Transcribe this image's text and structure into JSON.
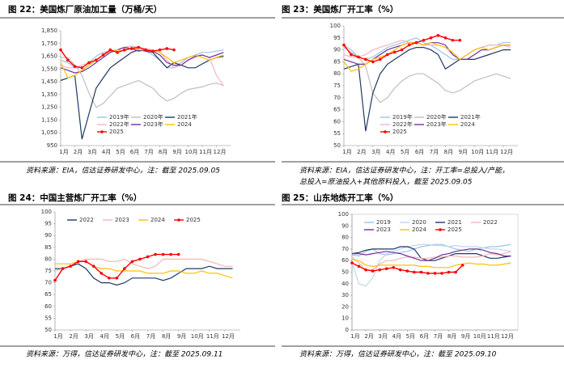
{
  "chart_data": [
    {
      "type": "line",
      "title": "图 22：美国炼厂原油加工量（万桶/天）",
      "note": [
        "资料来源：EIA，信达证券研发中心，注：截至 2025.09.05"
      ],
      "x": [
        1,
        2,
        3,
        4,
        5,
        6,
        7,
        8,
        9,
        10,
        11,
        12,
        13,
        14,
        15,
        16,
        17,
        18,
        19,
        20,
        21,
        22,
        23,
        24
      ],
      "xlim": [
        1,
        25
      ],
      "xticks": [
        {
          "value": 1,
          "label": "1月"
        },
        {
          "value": 3,
          "label": "2月"
        },
        {
          "value": 5,
          "label": "3月"
        },
        {
          "value": 7,
          "label": "4月"
        },
        {
          "value": 9,
          "label": "5月"
        },
        {
          "value": 11,
          "label": "6月"
        },
        {
          "value": 13,
          "label": "7月"
        },
        {
          "value": 15,
          "label": "8月"
        },
        {
          "value": 17,
          "label": "9月"
        },
        {
          "value": 19,
          "label": "10月"
        },
        {
          "value": 21,
          "label": "11月"
        },
        {
          "value": 23,
          "label": "12月"
        }
      ],
      "ylim": [
        950,
        1850
      ],
      "yticks": [
        {
          "value": 950,
          "label": "950"
        },
        {
          "value": 1050,
          "label": "1,050"
        },
        {
          "value": 1150,
          "label": "1,150"
        },
        {
          "value": 1250,
          "label": "1,250"
        },
        {
          "value": 1350,
          "label": "1,350"
        },
        {
          "value": 1450,
          "label": "1,450"
        },
        {
          "value": 1550,
          "label": "1,550"
        },
        {
          "value": 1650,
          "label": "1,650"
        },
        {
          "value": 1750,
          "label": "1,750"
        },
        {
          "value": 1850,
          "label": "1,850"
        }
      ],
      "legend": "bottom",
      "series": [
        {
          "name": "2019年",
          "color": "#9dc3e6",
          "values": [
            1620,
            1600,
            1560,
            1560,
            1600,
            1650,
            1680,
            1690,
            1700,
            1720,
            1730,
            1700,
            1690,
            1660,
            1620,
            1560,
            1560,
            1600,
            1640,
            1660,
            1680,
            1680,
            1690,
            1700
          ]
        },
        {
          "name": "2020年",
          "color": "#bfbfbf",
          "values": [
            1640,
            1640,
            1580,
            1500,
            1360,
            1250,
            1280,
            1340,
            1400,
            1420,
            1440,
            1460,
            1430,
            1400,
            1340,
            1300,
            1320,
            1360,
            1390,
            1400,
            1410,
            1430,
            1440,
            1420
          ]
        },
        {
          "name": "2021年",
          "color": "#1f3864",
          "values": [
            1460,
            1480,
            1500,
            1000,
            1200,
            1400,
            1480,
            1560,
            1600,
            1640,
            1680,
            1700,
            1690,
            1680,
            1620,
            1560,
            1600,
            1580,
            1560,
            1560,
            1590,
            1620,
            1640,
            1650
          ]
        },
        {
          "name": "2022年",
          "color": "#f4b6c2",
          "values": [
            1580,
            1560,
            1560,
            1580,
            1600,
            1620,
            1660,
            1680,
            1700,
            1720,
            1730,
            1720,
            1710,
            1700,
            1680,
            1620,
            1560,
            1580,
            1620,
            1640,
            1660,
            1640,
            1500,
            1420
          ]
        },
        {
          "name": "2023年",
          "color": "#7030a0",
          "values": [
            1560,
            1540,
            1520,
            1530,
            1560,
            1600,
            1640,
            1680,
            1700,
            1720,
            1710,
            1690,
            1700,
            1690,
            1660,
            1600,
            1580,
            1580,
            1620,
            1650,
            1660,
            1640,
            1660,
            1680
          ]
        },
        {
          "name": "2024",
          "color": "#ffc000",
          "values": [
            1600,
            1480,
            1500,
            1540,
            1580,
            1620,
            1660,
            1690,
            1700,
            1690,
            1720,
            1700,
            1700,
            1700,
            1680,
            1640,
            1600,
            1620,
            1640,
            1660,
            1640,
            1620,
            1640,
            1660
          ]
        },
        {
          "name": "2025",
          "color": "#ff0000",
          "marker": true,
          "values": [
            1700,
            1620,
            1570,
            1560,
            1600,
            1620,
            1660,
            1700,
            1680,
            1700,
            1710,
            1720,
            1700,
            1690,
            1700,
            1710,
            1700,
            null,
            null,
            null,
            null,
            null,
            null,
            null
          ]
        }
      ]
    },
    {
      "type": "line",
      "title": "图 23：美国炼厂开工率（%）",
      "note": [
        "资料来源：EIA，信达证券研发中心，注：开工率=总投入/产能，",
        "总投入=原油投入+其他原料投入，截至 2025.09.05"
      ],
      "x": [
        1,
        2,
        3,
        4,
        5,
        6,
        7,
        8,
        9,
        10,
        11,
        12,
        13,
        14,
        15,
        16,
        17,
        18,
        19,
        20,
        21,
        22,
        23,
        24
      ],
      "xlim": [
        1,
        25
      ],
      "xticks": [
        {
          "value": 1,
          "label": "1月"
        },
        {
          "value": 3,
          "label": "2月"
        },
        {
          "value": 5,
          "label": "3月"
        },
        {
          "value": 7,
          "label": "4月"
        },
        {
          "value": 9,
          "label": "5月"
        },
        {
          "value": 11,
          "label": "6月"
        },
        {
          "value": 13,
          "label": "7月"
        },
        {
          "value": 15,
          "label": "8月"
        },
        {
          "value": 17,
          "label": "9月"
        },
        {
          "value": 19,
          "label": "10月"
        },
        {
          "value": 21,
          "label": "11月"
        },
        {
          "value": 23,
          "label": "12月"
        }
      ],
      "ylim": [
        50,
        100
      ],
      "yticks": [
        50,
        55,
        60,
        65,
        70,
        75,
        80,
        85,
        90,
        95,
        100
      ],
      "legend": "bottom",
      "series": [
        {
          "name": "2019年",
          "color": "#9dc3e6",
          "values": [
            91,
            89,
            87,
            86,
            87,
            89,
            91,
            92,
            93,
            94,
            95,
            93,
            92,
            90,
            88,
            86,
            86,
            88,
            90,
            91,
            92,
            92,
            93,
            93
          ]
        },
        {
          "name": "2020年",
          "color": "#bfbfbf",
          "values": [
            92,
            90,
            87,
            83,
            72,
            68,
            70,
            74,
            77,
            79,
            80,
            80,
            78,
            76,
            73,
            72,
            73,
            75,
            77,
            78,
            79,
            80,
            79,
            78
          ]
        },
        {
          "name": "2021年",
          "color": "#1f3864",
          "values": [
            82,
            83,
            84,
            56,
            72,
            80,
            84,
            86,
            88,
            90,
            91,
            91,
            90,
            88,
            82,
            84,
            86,
            86,
            86,
            87,
            88,
            89,
            90,
            90
          ]
        },
        {
          "name": "2022年",
          "color": "#f4b6c2",
          "values": [
            88,
            87,
            87,
            88,
            90,
            91,
            92,
            93,
            94,
            93,
            93,
            92,
            92,
            92,
            91,
            88,
            86,
            88,
            90,
            91,
            92,
            92,
            92,
            91
          ]
        },
        {
          "name": "2023年",
          "color": "#7030a0",
          "values": [
            86,
            85,
            84,
            84,
            86,
            88,
            90,
            91,
            92,
            93,
            93,
            92,
            93,
            93,
            92,
            88,
            86,
            86,
            88,
            90,
            90,
            91,
            92,
            92
          ]
        },
        {
          "name": "2024",
          "color": "#ffc000",
          "values": [
            85,
            81,
            82,
            84,
            86,
            87,
            88,
            90,
            92,
            93,
            93,
            92,
            93,
            92,
            91,
            89,
            86,
            88,
            90,
            91,
            90,
            91,
            92,
            92
          ]
        },
        {
          "name": "2025",
          "color": "#ff0000",
          "marker": true,
          "values": [
            92,
            88,
            87,
            86,
            85,
            86,
            88,
            89,
            90,
            92,
            93,
            94,
            95,
            96,
            95,
            94,
            94,
            null,
            null,
            null,
            null,
            null,
            null,
            null
          ]
        }
      ]
    },
    {
      "type": "line",
      "title": "图 24：中国主营炼厂开工率（%）",
      "note": [
        "资料来源：万得，信达证券研发中心，注：截至 2025.09.11"
      ],
      "x": [
        1,
        2,
        3,
        4,
        5,
        6,
        7,
        8,
        9,
        10,
        11,
        12,
        13,
        14,
        15,
        16,
        17,
        18,
        19,
        20,
        21,
        22,
        23,
        24
      ],
      "xlim": [
        1,
        25
      ],
      "xticks": [
        {
          "value": 1,
          "label": "1月"
        },
        {
          "value": 3,
          "label": "2月"
        },
        {
          "value": 5,
          "label": "3月"
        },
        {
          "value": 7,
          "label": "4月"
        },
        {
          "value": 9,
          "label": "5月"
        },
        {
          "value": 11,
          "label": "6月"
        },
        {
          "value": 13,
          "label": "7月"
        },
        {
          "value": 15,
          "label": "8月"
        },
        {
          "value": 17,
          "label": "9月"
        },
        {
          "value": 19,
          "label": "10月"
        },
        {
          "value": 21,
          "label": "11月"
        },
        {
          "value": 23,
          "label": "12月"
        }
      ],
      "ylim": [
        50,
        100
      ],
      "yticks": [
        50,
        55,
        60,
        65,
        70,
        75,
        80,
        85,
        90,
        95,
        100
      ],
      "legend": "top",
      "series": [
        {
          "name": "2022",
          "color": "#1f3864",
          "values": [
            76,
            76,
            77,
            78,
            76,
            72,
            70,
            70,
            69,
            70,
            72,
            72,
            72,
            72,
            71,
            72,
            74,
            76,
            76,
            76,
            77,
            76,
            76,
            76
          ]
        },
        {
          "name": "2023",
          "color": "#f4b6b6",
          "values": [
            75,
            76,
            77,
            79,
            80,
            80,
            80,
            79,
            79,
            80,
            78,
            77,
            76,
            77,
            80,
            80,
            80,
            80,
            80,
            80,
            79,
            78,
            77,
            77
          ]
        },
        {
          "name": "2024",
          "color": "#ffc000",
          "values": [
            78,
            78,
            78,
            79,
            79,
            77,
            76,
            76,
            75,
            75,
            75,
            75,
            74,
            74,
            74,
            75,
            75,
            74,
            74,
            75,
            74,
            74,
            73,
            72
          ]
        },
        {
          "name": "2025",
          "color": "#ff0000",
          "marker": true,
          "values": [
            71,
            76,
            77,
            79,
            79,
            77,
            74,
            72,
            72,
            76,
            79,
            80,
            81,
            82,
            82,
            82,
            82,
            null,
            null,
            null,
            null,
            null,
            null,
            null
          ]
        }
      ]
    },
    {
      "type": "line",
      "title": "图 25：山东地炼开工率（%）",
      "note": [
        "资料来源：万得，信达证券研发中心，注：截至 2025.09.10"
      ],
      "x": [
        1,
        2,
        3,
        4,
        5,
        6,
        7,
        8,
        9,
        10,
        11,
        12,
        13,
        14,
        15,
        16,
        17,
        18,
        19,
        20,
        21,
        22,
        23,
        24
      ],
      "xlim": [
        1,
        25
      ],
      "xticks": [
        {
          "value": 1,
          "label": "1月"
        },
        {
          "value": 3,
          "label": "2月"
        },
        {
          "value": 5,
          "label": "3月"
        },
        {
          "value": 7,
          "label": "4月"
        },
        {
          "value": 9,
          "label": "5月"
        },
        {
          "value": 11,
          "label": "6月"
        },
        {
          "value": 13,
          "label": "7月"
        },
        {
          "value": 15,
          "label": "8月"
        },
        {
          "value": 17,
          "label": "9月"
        },
        {
          "value": 19,
          "label": "10月"
        },
        {
          "value": 21,
          "label": "11月"
        },
        {
          "value": 23,
          "label": "12月"
        }
      ],
      "ylim": [
        0,
        100
      ],
      "yticks": [
        0,
        10,
        20,
        30,
        40,
        50,
        60,
        70,
        80,
        90,
        100
      ],
      "legend": "top",
      "series": [
        {
          "name": "2019",
          "color": "#9dc3e6",
          "values": [
            65,
            64,
            68,
            70,
            66,
            65,
            66,
            67,
            68,
            70,
            72,
            73,
            74,
            74,
            72,
            70,
            69,
            68,
            70,
            71,
            72,
            72,
            73,
            74
          ]
        },
        {
          "name": "2020",
          "color": "#bdd7ee",
          "values": [
            58,
            40,
            38,
            45,
            60,
            66,
            68,
            70,
            72,
            73,
            74,
            74,
            73,
            73,
            72,
            73,
            72,
            72,
            72,
            71,
            70,
            70,
            69,
            68
          ]
        },
        {
          "name": "2021",
          "color": "#1f3864",
          "values": [
            66,
            67,
            69,
            70,
            70,
            70,
            70,
            72,
            72,
            70,
            62,
            60,
            60,
            62,
            64,
            66,
            66,
            66,
            66,
            64,
            62,
            62,
            63,
            64
          ]
        },
        {
          "name": "2022",
          "color": "#f4b6b6",
          "values": [
            63,
            58,
            52,
            52,
            57,
            60,
            60,
            62,
            63,
            63,
            62,
            62,
            63,
            63,
            64,
            64,
            63,
            63,
            63,
            64,
            66,
            65,
            66,
            68
          ]
        },
        {
          "name": "2023",
          "color": "#7030a0",
          "values": [
            66,
            66,
            65,
            66,
            67,
            68,
            67,
            66,
            64,
            62,
            60,
            60,
            62,
            65,
            66,
            68,
            69,
            70,
            70,
            69,
            67,
            66,
            64,
            64
          ]
        },
        {
          "name": "2024",
          "color": "#ffc000",
          "values": [
            61,
            60,
            56,
            55,
            56,
            56,
            56,
            56,
            56,
            56,
            55,
            55,
            54,
            54,
            54,
            56,
            57,
            58,
            57,
            57,
            56,
            56,
            57,
            58
          ]
        },
        {
          "name": "2025",
          "color": "#ff0000",
          "marker": true,
          "values": [
            58,
            55,
            52,
            51,
            52,
            53,
            54,
            52,
            51,
            50,
            50,
            49,
            49,
            49,
            50,
            50,
            56,
            null,
            null,
            null,
            null,
            null,
            null,
            null
          ]
        }
      ]
    }
  ]
}
